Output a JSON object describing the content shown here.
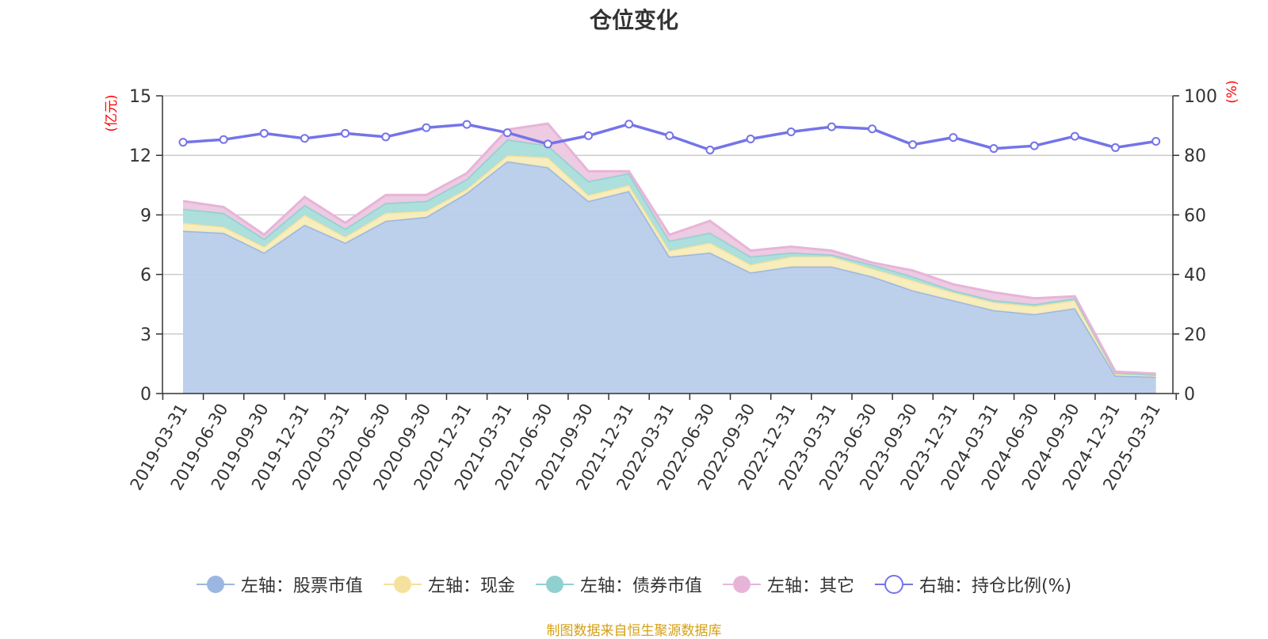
{
  "chart_data": {
    "type": "area",
    "title": "仓位变化",
    "left_axis_label": "(亿元)",
    "right_axis_label": "(%)",
    "left_ylim": [
      0,
      15
    ],
    "left_ticks": [
      0,
      3,
      6,
      9,
      12,
      15
    ],
    "right_ylim": [
      0,
      100
    ],
    "right_ticks": [
      0,
      20,
      40,
      60,
      80,
      100
    ],
    "grid": true,
    "legend_position": "bottom",
    "categories": [
      "2019-03-31",
      "2019-06-30",
      "2019-09-30",
      "2019-12-31",
      "2020-03-31",
      "2020-06-30",
      "2020-09-30",
      "2020-12-31",
      "2021-03-31",
      "2021-06-30",
      "2021-09-30",
      "2021-12-31",
      "2022-03-31",
      "2022-06-30",
      "2022-09-30",
      "2022-12-31",
      "2023-03-31",
      "2023-06-30",
      "2023-09-30",
      "2023-12-31",
      "2024-03-31",
      "2024-06-30",
      "2024-09-30",
      "2024-12-31",
      "2025-03-31"
    ],
    "stacked_series": [
      {
        "name": "左轴：股票市值",
        "axis": "left",
        "color": "#9bb6e0",
        "fill": "#b8cdea",
        "values": [
          8.2,
          8.1,
          7.1,
          8.5,
          7.6,
          8.7,
          8.9,
          10.1,
          11.7,
          11.4,
          9.7,
          10.2,
          6.9,
          7.1,
          6.1,
          6.4,
          6.4,
          5.9,
          5.2,
          4.7,
          4.2,
          4.0,
          4.3,
          0.9,
          0.85
        ]
      },
      {
        "name": "左轴：现金",
        "axis": "left",
        "color": "#f5e19d",
        "fill": "#f8ecb8",
        "values": [
          0.4,
          0.3,
          0.3,
          0.5,
          0.3,
          0.4,
          0.3,
          0.2,
          0.3,
          0.5,
          0.3,
          0.3,
          0.3,
          0.5,
          0.4,
          0.5,
          0.5,
          0.4,
          0.5,
          0.4,
          0.4,
          0.4,
          0.4,
          0.1,
          0.05
        ]
      },
      {
        "name": "左轴：债券市值",
        "axis": "left",
        "color": "#8fd1cf",
        "fill": "#a9dddb",
        "values": [
          0.7,
          0.7,
          0.4,
          0.5,
          0.4,
          0.5,
          0.5,
          0.5,
          0.8,
          0.6,
          0.7,
          0.6,
          0.5,
          0.5,
          0.4,
          0.2,
          0.1,
          0.2,
          0.2,
          0.1,
          0.1,
          0.1,
          0.1,
          0.05,
          0.05
        ]
      },
      {
        "name": "左轴：其它",
        "axis": "left",
        "color": "#e7b4d8",
        "fill": "#ecc8e2",
        "values": [
          0.4,
          0.3,
          0.2,
          0.4,
          0.3,
          0.4,
          0.3,
          0.3,
          0.5,
          1.1,
          0.5,
          0.1,
          0.3,
          0.6,
          0.3,
          0.3,
          0.2,
          0.1,
          0.3,
          0.3,
          0.4,
          0.3,
          0.1,
          0.05,
          0.05
        ]
      }
    ],
    "line_series": {
      "name": "右轴：持仓比例(%)",
      "axis": "right",
      "color": "#7474e8",
      "values": [
        84.4,
        85.3,
        87.4,
        85.7,
        87.4,
        86.2,
        89.3,
        90.4,
        87.6,
        83.8,
        86.6,
        90.5,
        86.6,
        81.8,
        85.5,
        87.9,
        89.6,
        88.9,
        83.6,
        86.0,
        82.3,
        83.2,
        86.4,
        82.6,
        84.7
      ]
    }
  },
  "source_note": "制图数据来自恒生聚源数据库"
}
